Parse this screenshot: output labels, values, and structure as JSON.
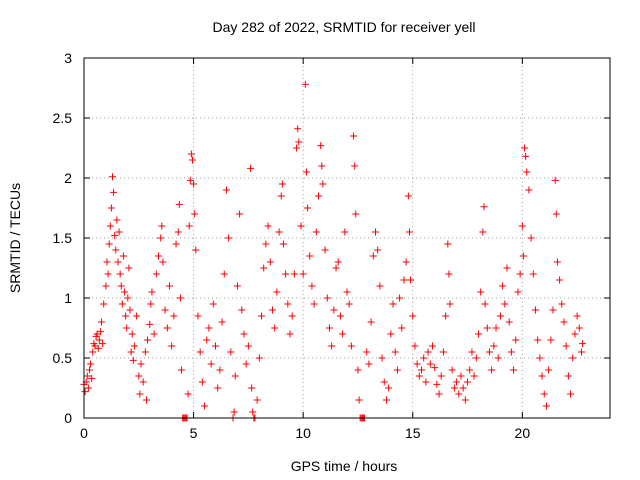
{
  "chart_data": {
    "type": "scatter",
    "title": "Day 282 of 2022, SRMTID for receiver yell",
    "xlabel": "GPS time / hours",
    "ylabel": "SRMTID / TECUs",
    "xlim": [
      0,
      24
    ],
    "ylim": [
      0,
      3
    ],
    "xticks": [
      0,
      5,
      10,
      15,
      20
    ],
    "yticks": [
      0,
      0.5,
      1,
      1.5,
      2,
      2.5,
      3
    ],
    "xtick_labels": [
      "0",
      "5",
      "10",
      "15",
      "20"
    ],
    "ytick_labels": [
      "0",
      "0.5",
      "1",
      "1.5",
      "2",
      "2.5",
      "3"
    ],
    "grid": true,
    "marker": "+",
    "color": "#ff0000",
    "series": [
      {
        "name": "SRMTID",
        "points": [
          [
            0.0,
            0.28
          ],
          [
            0.05,
            0.22
          ],
          [
            0.1,
            0.3
          ],
          [
            0.15,
            0.35
          ],
          [
            0.2,
            0.25
          ],
          [
            0.25,
            0.4
          ],
          [
            0.3,
            0.45
          ],
          [
            0.35,
            0.33
          ],
          [
            0.4,
            0.55
          ],
          [
            0.45,
            0.62
          ],
          [
            0.5,
            0.6
          ],
          [
            0.55,
            0.68
          ],
          [
            0.6,
            0.7
          ],
          [
            0.65,
            0.58
          ],
          [
            0.7,
            0.65
          ],
          [
            0.75,
            0.72
          ],
          [
            0.8,
            0.8
          ],
          [
            0.85,
            0.62
          ],
          [
            0.9,
            0.95
          ],
          [
            1.0,
            1.1
          ],
          [
            1.05,
            1.3
          ],
          [
            1.1,
            1.2
          ],
          [
            1.15,
            1.45
          ],
          [
            1.2,
            1.6
          ],
          [
            1.25,
            1.75
          ],
          [
            1.3,
            2.01
          ],
          [
            1.35,
            1.88
          ],
          [
            1.4,
            1.52
          ],
          [
            1.45,
            1.4
          ],
          [
            1.5,
            1.65
          ],
          [
            1.55,
            1.3
          ],
          [
            1.6,
            1.55
          ],
          [
            1.65,
            1.2
          ],
          [
            1.7,
            1.1
          ],
          [
            1.75,
            0.95
          ],
          [
            1.8,
            1.35
          ],
          [
            1.85,
            1.05
          ],
          [
            1.9,
            0.85
          ],
          [
            1.95,
            0.75
          ],
          [
            2.0,
            1.0
          ],
          [
            2.05,
            1.25
          ],
          [
            2.1,
            0.9
          ],
          [
            2.15,
            0.55
          ],
          [
            2.2,
            0.7
          ],
          [
            2.25,
            0.48
          ],
          [
            2.3,
            0.6
          ],
          [
            2.4,
            0.85
          ],
          [
            2.5,
            0.35
          ],
          [
            2.55,
            0.2
          ],
          [
            2.6,
            0.45
          ],
          [
            2.7,
            0.3
          ],
          [
            2.8,
            0.55
          ],
          [
            2.85,
            0.15
          ],
          [
            2.9,
            0.65
          ],
          [
            3.0,
            0.78
          ],
          [
            3.05,
            0.95
          ],
          [
            3.1,
            1.05
          ],
          [
            3.2,
            0.7
          ],
          [
            3.3,
            1.2
          ],
          [
            3.4,
            1.35
          ],
          [
            3.5,
            1.5
          ],
          [
            3.55,
            1.6
          ],
          [
            3.6,
            1.3
          ],
          [
            3.7,
            0.9
          ],
          [
            3.8,
            0.75
          ],
          [
            3.9,
            1.1
          ],
          [
            4.0,
            0.6
          ],
          [
            4.1,
            0.85
          ],
          [
            4.2,
            1.45
          ],
          [
            4.3,
            1.55
          ],
          [
            4.35,
            1.78
          ],
          [
            4.4,
            1.0
          ],
          [
            4.45,
            0.4
          ],
          [
            4.5,
            0.0
          ],
          [
            4.55,
            0.0
          ],
          [
            4.6,
            0.0
          ],
          [
            4.65,
            0.0
          ],
          [
            4.7,
            0.0
          ],
          [
            4.75,
            0.2
          ],
          [
            4.8,
            1.6
          ],
          [
            4.85,
            1.98
          ],
          [
            4.9,
            2.2
          ],
          [
            4.95,
            2.15
          ],
          [
            5.0,
            1.95
          ],
          [
            5.05,
            1.7
          ],
          [
            5.1,
            1.4
          ],
          [
            5.2,
            0.85
          ],
          [
            5.3,
            0.55
          ],
          [
            5.4,
            0.3
          ],
          [
            5.5,
            0.1
          ],
          [
            5.6,
            0.65
          ],
          [
            5.7,
            0.75
          ],
          [
            5.8,
            0.45
          ],
          [
            5.9,
            0.95
          ],
          [
            6.0,
            0.6
          ],
          [
            6.1,
            0.25
          ],
          [
            6.2,
            0.4
          ],
          [
            6.3,
            0.8
          ],
          [
            6.4,
            1.2
          ],
          [
            6.5,
            1.9
          ],
          [
            6.6,
            1.5
          ],
          [
            6.7,
            0.55
          ],
          [
            6.8,
            0.0
          ],
          [
            6.85,
            0.05
          ],
          [
            6.9,
            0.35
          ],
          [
            7.0,
            1.1
          ],
          [
            7.1,
            1.7
          ],
          [
            7.2,
            0.9
          ],
          [
            7.3,
            0.7
          ],
          [
            7.4,
            0.45
          ],
          [
            7.5,
            0.6
          ],
          [
            7.6,
            2.08
          ],
          [
            7.65,
            0.25
          ],
          [
            7.7,
            0.05
          ],
          [
            7.75,
            0.0
          ],
          [
            7.8,
            0.0
          ],
          [
            7.9,
            0.15
          ],
          [
            8.0,
            0.5
          ],
          [
            8.1,
            0.85
          ],
          [
            8.2,
            1.25
          ],
          [
            8.3,
            1.45
          ],
          [
            8.4,
            1.6
          ],
          [
            8.5,
            1.3
          ],
          [
            8.6,
            0.9
          ],
          [
            8.7,
            0.75
          ],
          [
            8.8,
            1.05
          ],
          [
            8.9,
            1.55
          ],
          [
            9.0,
            1.85
          ],
          [
            9.05,
            1.95
          ],
          [
            9.1,
            1.45
          ],
          [
            9.2,
            1.2
          ],
          [
            9.3,
            0.95
          ],
          [
            9.4,
            0.7
          ],
          [
            9.5,
            0.85
          ],
          [
            9.6,
            1.2
          ],
          [
            9.7,
            2.25
          ],
          [
            9.75,
            2.41
          ],
          [
            9.8,
            2.3
          ],
          [
            9.9,
            1.6
          ],
          [
            10.0,
            1.2
          ],
          [
            10.1,
            2.78
          ],
          [
            10.15,
            2.05
          ],
          [
            10.2,
            1.75
          ],
          [
            10.3,
            1.35
          ],
          [
            10.4,
            1.1
          ],
          [
            10.5,
            0.95
          ],
          [
            10.6,
            1.55
          ],
          [
            10.7,
            1.85
          ],
          [
            10.8,
            2.27
          ],
          [
            10.85,
            2.1
          ],
          [
            10.9,
            1.95
          ],
          [
            11.0,
            1.4
          ],
          [
            11.1,
            1.0
          ],
          [
            11.2,
            0.75
          ],
          [
            11.3,
            0.6
          ],
          [
            11.4,
            0.9
          ],
          [
            11.5,
            1.25
          ],
          [
            11.6,
            1.3
          ],
          [
            11.7,
            0.85
          ],
          [
            11.8,
            0.7
          ],
          [
            11.9,
            1.55
          ],
          [
            12.0,
            1.05
          ],
          [
            12.1,
            0.95
          ],
          [
            12.2,
            0.6
          ],
          [
            12.3,
            2.35
          ],
          [
            12.35,
            2.1
          ],
          [
            12.4,
            1.7
          ],
          [
            12.5,
            0.4
          ],
          [
            12.55,
            0.15
          ],
          [
            12.6,
            0.0
          ],
          [
            12.65,
            0.0
          ],
          [
            12.7,
            0.0
          ],
          [
            12.75,
            0.0
          ],
          [
            12.8,
            0.0
          ],
          [
            12.9,
            0.55
          ],
          [
            13.0,
            0.45
          ],
          [
            13.1,
            0.8
          ],
          [
            13.2,
            1.35
          ],
          [
            13.3,
            1.55
          ],
          [
            13.4,
            1.4
          ],
          [
            13.5,
            1.1
          ],
          [
            13.6,
            0.5
          ],
          [
            13.7,
            0.3
          ],
          [
            13.8,
            0.15
          ],
          [
            13.9,
            0.25
          ],
          [
            14.0,
            0.7
          ],
          [
            14.1,
            0.95
          ],
          [
            14.2,
            0.55
          ],
          [
            14.3,
            0.4
          ],
          [
            14.4,
            1.0
          ],
          [
            14.5,
            0.75
          ],
          [
            14.6,
            1.15
          ],
          [
            14.7,
            1.3
          ],
          [
            14.8,
            1.85
          ],
          [
            14.85,
            1.55
          ],
          [
            14.9,
            1.15
          ],
          [
            15.0,
            0.85
          ],
          [
            15.1,
            0.6
          ],
          [
            15.2,
            0.45
          ],
          [
            15.3,
            0.35
          ],
          [
            15.4,
            0.4
          ],
          [
            15.5,
            0.5
          ],
          [
            15.6,
            0.3
          ],
          [
            15.7,
            0.55
          ],
          [
            15.8,
            0.45
          ],
          [
            15.9,
            0.6
          ],
          [
            16.0,
            0.42
          ],
          [
            16.1,
            0.28
          ],
          [
            16.2,
            0.2
          ],
          [
            16.3,
            0.35
          ],
          [
            16.4,
            0.55
          ],
          [
            16.5,
            0.85
          ],
          [
            16.6,
            1.45
          ],
          [
            16.65,
            1.2
          ],
          [
            16.7,
            0.95
          ],
          [
            16.8,
            0.4
          ],
          [
            16.9,
            0.25
          ],
          [
            17.0,
            0.3
          ],
          [
            17.1,
            0.2
          ],
          [
            17.2,
            0.35
          ],
          [
            17.3,
            0.25
          ],
          [
            17.4,
            0.15
          ],
          [
            17.5,
            0.3
          ],
          [
            17.6,
            0.4
          ],
          [
            17.7,
            0.55
          ],
          [
            17.8,
            0.35
          ],
          [
            17.9,
            0.5
          ],
          [
            18.0,
            0.7
          ],
          [
            18.1,
            1.05
          ],
          [
            18.2,
            1.55
          ],
          [
            18.25,
            1.76
          ],
          [
            18.3,
            0.95
          ],
          [
            18.4,
            0.75
          ],
          [
            18.5,
            0.55
          ],
          [
            18.6,
            0.4
          ],
          [
            18.7,
            0.6
          ],
          [
            18.8,
            0.75
          ],
          [
            18.9,
            0.5
          ],
          [
            19.0,
            0.85
          ],
          [
            19.1,
            1.1
          ],
          [
            19.2,
            0.95
          ],
          [
            19.3,
            1.25
          ],
          [
            19.4,
            0.8
          ],
          [
            19.5,
            0.55
          ],
          [
            19.6,
            0.4
          ],
          [
            19.7,
            0.65
          ],
          [
            19.8,
            1.05
          ],
          [
            19.9,
            1.2
          ],
          [
            20.0,
            1.6
          ],
          [
            20.05,
            1.35
          ],
          [
            20.1,
            2.25
          ],
          [
            20.15,
            2.18
          ],
          [
            20.2,
            2.05
          ],
          [
            20.3,
            1.9
          ],
          [
            20.4,
            1.5
          ],
          [
            20.5,
            1.2
          ],
          [
            20.6,
            0.9
          ],
          [
            20.7,
            0.65
          ],
          [
            20.8,
            0.5
          ],
          [
            20.9,
            0.35
          ],
          [
            21.0,
            0.2
          ],
          [
            21.1,
            0.1
          ],
          [
            21.2,
            0.4
          ],
          [
            21.3,
            0.65
          ],
          [
            21.4,
            0.9
          ],
          [
            21.5,
            1.98
          ],
          [
            21.55,
            1.7
          ],
          [
            21.6,
            1.3
          ],
          [
            21.7,
            1.15
          ],
          [
            21.8,
            0.95
          ],
          [
            21.9,
            0.8
          ],
          [
            22.0,
            0.6
          ],
          [
            22.1,
            0.35
          ],
          [
            22.2,
            0.2
          ],
          [
            22.3,
            0.5
          ],
          [
            22.4,
            0.7
          ],
          [
            22.5,
            0.85
          ],
          [
            22.6,
            0.75
          ],
          [
            22.7,
            0.55
          ],
          [
            22.75,
            0.62
          ]
        ]
      }
    ]
  }
}
